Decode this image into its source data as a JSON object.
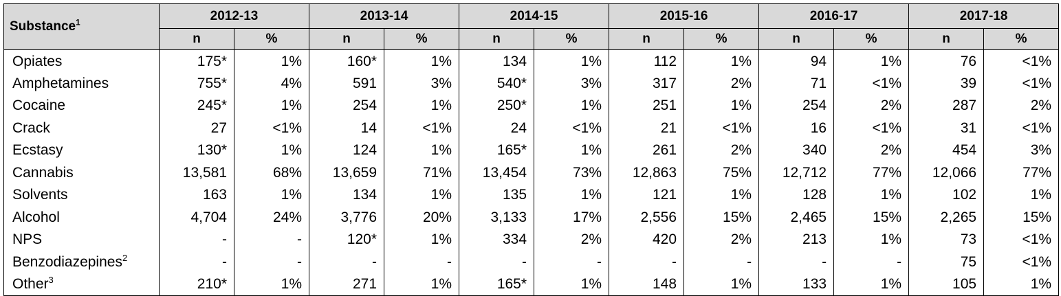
{
  "table": {
    "header": {
      "substance_label": "Substance",
      "substance_footnote": "1",
      "years": [
        "2012-13",
        "2013-14",
        "2014-15",
        "2015-16",
        "2016-17",
        "2017-18"
      ],
      "n_label": "n",
      "pct_label": "%"
    },
    "rows": [
      {
        "name": "Opiates",
        "fn": "",
        "cells": [
          "175*",
          "1%",
          "160*",
          "1%",
          "134",
          "1%",
          "112",
          "1%",
          "94",
          "1%",
          "76",
          "<1%"
        ]
      },
      {
        "name": "Amphetamines",
        "fn": "",
        "cells": [
          "755*",
          "4%",
          "591",
          "3%",
          "540*",
          "3%",
          "317",
          "2%",
          "71",
          "<1%",
          "39",
          "<1%"
        ]
      },
      {
        "name": "Cocaine",
        "fn": "",
        "cells": [
          "245*",
          "1%",
          "254",
          "1%",
          "250*",
          "1%",
          "251",
          "1%",
          "254",
          "2%",
          "287",
          "2%"
        ]
      },
      {
        "name": "Crack",
        "fn": "",
        "cells": [
          "27",
          "<1%",
          "14",
          "<1%",
          "24",
          "<1%",
          "21",
          "<1%",
          "16",
          "<1%",
          "31",
          "<1%"
        ]
      },
      {
        "name": "Ecstasy",
        "fn": "",
        "cells": [
          "130*",
          "1%",
          "124",
          "1%",
          "165*",
          "1%",
          "261",
          "2%",
          "340",
          "2%",
          "454",
          "3%"
        ]
      },
      {
        "name": "Cannabis",
        "fn": "",
        "cells": [
          "13,581",
          "68%",
          "13,659",
          "71%",
          "13,454",
          "73%",
          "12,863",
          "75%",
          "12,712",
          "77%",
          "12,066",
          "77%"
        ]
      },
      {
        "name": "Solvents",
        "fn": "",
        "cells": [
          "163",
          "1%",
          "134",
          "1%",
          "135",
          "1%",
          "121",
          "1%",
          "128",
          "1%",
          "102",
          "1%"
        ]
      },
      {
        "name": "Alcohol",
        "fn": "",
        "cells": [
          "4,704",
          "24%",
          "3,776",
          "20%",
          "3,133",
          "17%",
          "2,556",
          "15%",
          "2,465",
          "15%",
          "2,265",
          "15%"
        ]
      },
      {
        "name": "NPS",
        "fn": "",
        "cells": [
          "-",
          "-",
          "120*",
          "1%",
          "334",
          "2%",
          "420",
          "2%",
          "213",
          "1%",
          "73",
          "<1%"
        ]
      },
      {
        "name": "Benzodiazepines",
        "fn": "2",
        "cells": [
          "-",
          "-",
          "-",
          "-",
          "-",
          "-",
          "-",
          "-",
          "-",
          "-",
          "75",
          "<1%"
        ]
      },
      {
        "name": "Other",
        "fn": "3",
        "cells": [
          "210*",
          "1%",
          "271",
          "1%",
          "165*",
          "1%",
          "148",
          "1%",
          "133",
          "1%",
          "105",
          "1%"
        ]
      }
    ]
  }
}
